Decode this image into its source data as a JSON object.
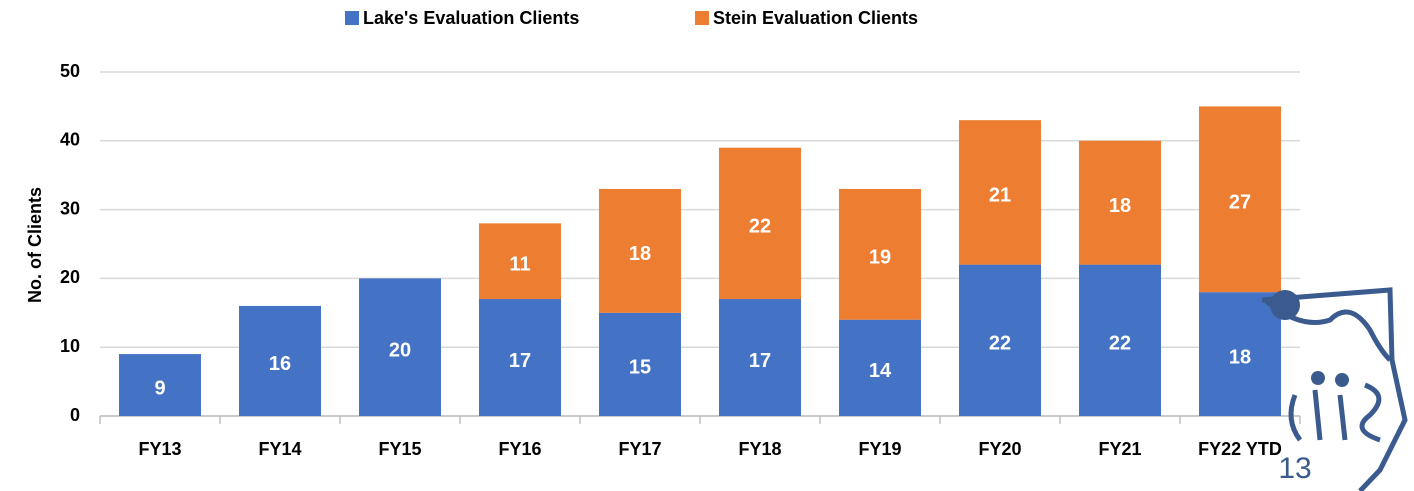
{
  "chart_data": {
    "type": "stacked_bar",
    "categories": [
      "FY13",
      "FY14",
      "FY15",
      "FY16",
      "FY17",
      "FY18",
      "FY19",
      "FY20",
      "FY21",
      "FY22 YTD"
    ],
    "series": [
      {
        "name": "Lake's Evaluation Clients",
        "color": "#4472c4",
        "values": [
          9,
          16,
          20,
          17,
          15,
          17,
          14,
          22,
          22,
          18
        ]
      },
      {
        "name": "Stein Evaluation Clients",
        "color": "#ed7d31",
        "values": [
          null,
          null,
          null,
          11,
          18,
          22,
          19,
          21,
          18,
          27
        ]
      }
    ],
    "y_label": "No. of Clients",
    "ylim": [
      0,
      50
    ],
    "yticks": [
      0,
      10,
      20,
      30,
      40,
      50
    ],
    "grid": true,
    "legend": "top"
  },
  "slide_number": "13"
}
